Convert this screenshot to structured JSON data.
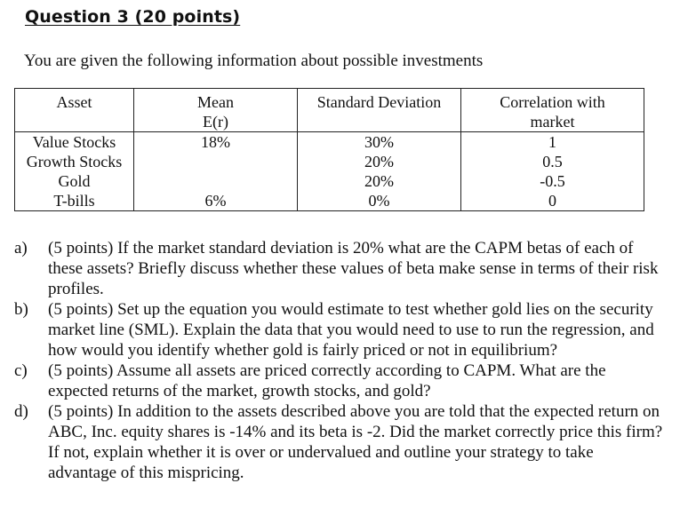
{
  "title": "Question 3 (20 points)",
  "intro": "You are given the following information about possible investments",
  "table": {
    "headers": {
      "asset": "Asset",
      "mean_line1": "Mean",
      "mean_line2": "E(r)",
      "sd": "Standard Deviation",
      "corr_line1": "Correlation with",
      "corr_line2": "market"
    },
    "rows": [
      {
        "asset": "Value Stocks",
        "mean": "18%",
        "sd": "30%",
        "corr": "1"
      },
      {
        "asset": "Growth Stocks",
        "mean": "",
        "sd": "20%",
        "corr": "0.5"
      },
      {
        "asset": "Gold",
        "mean": "",
        "sd": "20%",
        "corr": "-0.5"
      },
      {
        "asset": "T-bills",
        "mean": "6%",
        "sd": "0%",
        "corr": "0"
      }
    ]
  },
  "questions": [
    {
      "label": "a)",
      "text": "(5 points) If the market standard deviation is 20% what are the CAPM betas of each of these assets? Briefly discuss whether these values of beta make sense in terms of their risk profiles."
    },
    {
      "label": "b)",
      "text": "(5 points) Set up the equation you would estimate to test whether gold lies on the security market line (SML). Explain the data that you would need to use to run the regression, and how would you identify whether gold is fairly priced or not in equilibrium?"
    },
    {
      "label": "c)",
      "text": "(5 points) Assume all assets are priced correctly according to CAPM. What are the expected returns of the market, growth stocks, and gold?"
    },
    {
      "label": "d)",
      "text": "(5 points) In addition to the assets described above you are told that the expected return on ABC, Inc. equity shares is -14% and its beta is -2. Did the market correctly price this firm? If not, explain whether it is over or undervalued and outline your strategy to take advantage of this mispricing."
    }
  ]
}
